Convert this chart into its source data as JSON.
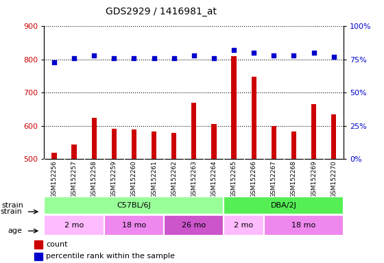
{
  "title": "GDS2929 / 1416981_at",
  "samples": [
    "GSM152256",
    "GSM152257",
    "GSM152258",
    "GSM152259",
    "GSM152260",
    "GSM152261",
    "GSM152262",
    "GSM152263",
    "GSM152264",
    "GSM152265",
    "GSM152266",
    "GSM152267",
    "GSM152268",
    "GSM152269",
    "GSM152270"
  ],
  "count_values": [
    520,
    545,
    625,
    592,
    590,
    583,
    580,
    670,
    605,
    810,
    748,
    600,
    583,
    665,
    635
  ],
  "percentile_values": [
    73,
    76,
    78,
    76,
    76,
    76,
    76,
    78,
    76,
    82,
    80,
    78,
    78,
    80,
    77
  ],
  "ylim_left": [
    500,
    900
  ],
  "ylim_right": [
    0,
    100
  ],
  "yticks_left": [
    500,
    600,
    700,
    800,
    900
  ],
  "yticks_right": [
    0,
    25,
    50,
    75,
    100
  ],
  "bar_color": "#cc0000",
  "dot_color": "#0000cc",
  "strain_groups": [
    {
      "label": "C57BL/6J",
      "start": 0,
      "end": 9,
      "color": "#99ff99"
    },
    {
      "label": "DBA/2J",
      "start": 9,
      "end": 15,
      "color": "#55ee55"
    }
  ],
  "age_groups": [
    {
      "label": "2 mo",
      "start": 0,
      "end": 3,
      "color": "#ffbbff"
    },
    {
      "label": "18 mo",
      "start": 3,
      "end": 6,
      "color": "#ee88ee"
    },
    {
      "label": "26 mo",
      "start": 6,
      "end": 9,
      "color": "#cc55cc"
    },
    {
      "label": "2 mo",
      "start": 9,
      "end": 11,
      "color": "#ffbbff"
    },
    {
      "label": "18 mo",
      "start": 11,
      "end": 15,
      "color": "#ee88ee"
    }
  ],
  "background_color": "#ffffff",
  "tick_area_color": "#c8c8c8",
  "bar_width": 0.25
}
